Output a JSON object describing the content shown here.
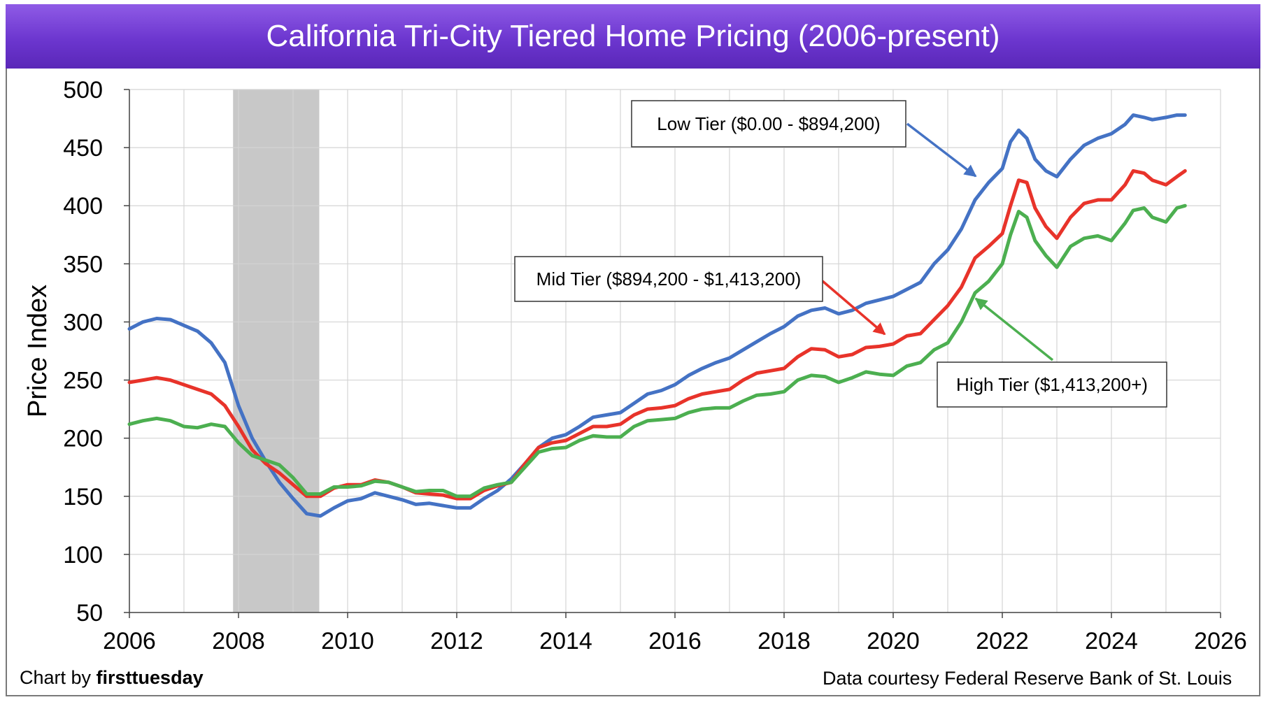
{
  "title": "California Tri-City Tiered Home Pricing (2006-present)",
  "credit_left_prefix": "Chart by ",
  "credit_left_brand": "firsttuesday",
  "credit_right": "Data courtesy Federal Reserve Bank of St. Louis",
  "chart_data": {
    "type": "line",
    "ylabel": "Price Index",
    "xlabel": "",
    "xlim": [
      2006,
      2026
    ],
    "ylim": [
      50,
      500
    ],
    "x_ticks": [
      2006,
      2008,
      2010,
      2012,
      2014,
      2016,
      2018,
      2020,
      2022,
      2024,
      2026
    ],
    "y_ticks": [
      50,
      100,
      150,
      200,
      250,
      300,
      350,
      400,
      450,
      500
    ],
    "grid": true,
    "shaded_region": {
      "x_start": 2007.9,
      "x_end": 2009.48,
      "color": "#c8c8c8"
    },
    "series": [
      {
        "name": "Low Tier ($0.00 - $894,200)",
        "color": "#4472c4",
        "points": [
          [
            2006,
            294
          ],
          [
            2006.25,
            300
          ],
          [
            2006.5,
            303
          ],
          [
            2006.75,
            302
          ],
          [
            2007,
            297
          ],
          [
            2007.25,
            292
          ],
          [
            2007.5,
            282
          ],
          [
            2007.75,
            265
          ],
          [
            2008,
            228
          ],
          [
            2008.25,
            200
          ],
          [
            2008.5,
            180
          ],
          [
            2008.75,
            162
          ],
          [
            2009,
            148
          ],
          [
            2009.25,
            135
          ],
          [
            2009.5,
            133
          ],
          [
            2009.75,
            140
          ],
          [
            2010,
            146
          ],
          [
            2010.25,
            148
          ],
          [
            2010.5,
            153
          ],
          [
            2010.75,
            150
          ],
          [
            2011,
            147
          ],
          [
            2011.25,
            143
          ],
          [
            2011.5,
            144
          ],
          [
            2011.75,
            142
          ],
          [
            2012,
            140
          ],
          [
            2012.25,
            140
          ],
          [
            2012.5,
            148
          ],
          [
            2012.75,
            155
          ],
          [
            2013,
            165
          ],
          [
            2013.25,
            178
          ],
          [
            2013.5,
            192
          ],
          [
            2013.75,
            200
          ],
          [
            2014,
            203
          ],
          [
            2014.25,
            210
          ],
          [
            2014.5,
            218
          ],
          [
            2014.75,
            220
          ],
          [
            2015,
            222
          ],
          [
            2015.25,
            230
          ],
          [
            2015.5,
            238
          ],
          [
            2015.75,
            241
          ],
          [
            2016,
            246
          ],
          [
            2016.25,
            254
          ],
          [
            2016.5,
            260
          ],
          [
            2016.75,
            265
          ],
          [
            2017,
            269
          ],
          [
            2017.25,
            276
          ],
          [
            2017.5,
            283
          ],
          [
            2017.75,
            290
          ],
          [
            2018,
            296
          ],
          [
            2018.25,
            305
          ],
          [
            2018.5,
            310
          ],
          [
            2018.75,
            312
          ],
          [
            2019,
            307
          ],
          [
            2019.25,
            310
          ],
          [
            2019.5,
            316
          ],
          [
            2019.75,
            319
          ],
          [
            2020,
            322
          ],
          [
            2020.25,
            328
          ],
          [
            2020.5,
            334
          ],
          [
            2020.75,
            350
          ],
          [
            2021,
            362
          ],
          [
            2021.25,
            380
          ],
          [
            2021.5,
            405
          ],
          [
            2021.75,
            420
          ],
          [
            2022,
            432
          ],
          [
            2022.15,
            455
          ],
          [
            2022.3,
            465
          ],
          [
            2022.45,
            458
          ],
          [
            2022.6,
            440
          ],
          [
            2022.8,
            430
          ],
          [
            2023,
            425
          ],
          [
            2023.25,
            440
          ],
          [
            2023.5,
            452
          ],
          [
            2023.75,
            458
          ],
          [
            2024,
            462
          ],
          [
            2024.25,
            470
          ],
          [
            2024.4,
            478
          ],
          [
            2024.6,
            476
          ],
          [
            2024.75,
            474
          ],
          [
            2025,
            476
          ],
          [
            2025.2,
            478
          ],
          [
            2025.35,
            478
          ]
        ]
      },
      {
        "name": "Mid Tier ($894,200 - $1,413,200)",
        "color": "#e8332a",
        "points": [
          [
            2006,
            248
          ],
          [
            2006.25,
            250
          ],
          [
            2006.5,
            252
          ],
          [
            2006.75,
            250
          ],
          [
            2007,
            246
          ],
          [
            2007.25,
            242
          ],
          [
            2007.5,
            238
          ],
          [
            2007.75,
            228
          ],
          [
            2008,
            210
          ],
          [
            2008.25,
            190
          ],
          [
            2008.5,
            178
          ],
          [
            2008.75,
            170
          ],
          [
            2009,
            160
          ],
          [
            2009.25,
            150
          ],
          [
            2009.5,
            150
          ],
          [
            2009.75,
            157
          ],
          [
            2010,
            160
          ],
          [
            2010.25,
            160
          ],
          [
            2010.5,
            164
          ],
          [
            2010.75,
            162
          ],
          [
            2011,
            158
          ],
          [
            2011.25,
            153
          ],
          [
            2011.5,
            152
          ],
          [
            2011.75,
            151
          ],
          [
            2012,
            148
          ],
          [
            2012.25,
            148
          ],
          [
            2012.5,
            155
          ],
          [
            2012.75,
            159
          ],
          [
            2013,
            162
          ],
          [
            2013.25,
            178
          ],
          [
            2013.5,
            192
          ],
          [
            2013.75,
            196
          ],
          [
            2014,
            198
          ],
          [
            2014.25,
            204
          ],
          [
            2014.5,
            210
          ],
          [
            2014.75,
            210
          ],
          [
            2015,
            212
          ],
          [
            2015.25,
            220
          ],
          [
            2015.5,
            225
          ],
          [
            2015.75,
            226
          ],
          [
            2016,
            228
          ],
          [
            2016.25,
            234
          ],
          [
            2016.5,
            238
          ],
          [
            2016.75,
            240
          ],
          [
            2017,
            242
          ],
          [
            2017.25,
            250
          ],
          [
            2017.5,
            256
          ],
          [
            2017.75,
            258
          ],
          [
            2018,
            260
          ],
          [
            2018.25,
            270
          ],
          [
            2018.5,
            277
          ],
          [
            2018.75,
            276
          ],
          [
            2019,
            270
          ],
          [
            2019.25,
            272
          ],
          [
            2019.5,
            278
          ],
          [
            2019.75,
            279
          ],
          [
            2020,
            281
          ],
          [
            2020.25,
            288
          ],
          [
            2020.5,
            290
          ],
          [
            2020.75,
            302
          ],
          [
            2021,
            314
          ],
          [
            2021.25,
            330
          ],
          [
            2021.5,
            355
          ],
          [
            2021.75,
            365
          ],
          [
            2022,
            376
          ],
          [
            2022.15,
            400
          ],
          [
            2022.3,
            422
          ],
          [
            2022.45,
            420
          ],
          [
            2022.6,
            398
          ],
          [
            2022.8,
            382
          ],
          [
            2023,
            372
          ],
          [
            2023.25,
            390
          ],
          [
            2023.5,
            402
          ],
          [
            2023.75,
            405
          ],
          [
            2024,
            405
          ],
          [
            2024.25,
            418
          ],
          [
            2024.4,
            430
          ],
          [
            2024.6,
            428
          ],
          [
            2024.75,
            422
          ],
          [
            2025,
            418
          ],
          [
            2025.2,
            425
          ],
          [
            2025.35,
            430
          ]
        ]
      },
      {
        "name": "High Tier ($1,413,200+)",
        "color": "#4caf50",
        "points": [
          [
            2006,
            212
          ],
          [
            2006.25,
            215
          ],
          [
            2006.5,
            217
          ],
          [
            2006.75,
            215
          ],
          [
            2007,
            210
          ],
          [
            2007.25,
            209
          ],
          [
            2007.5,
            212
          ],
          [
            2007.75,
            210
          ],
          [
            2008,
            196
          ],
          [
            2008.25,
            185
          ],
          [
            2008.5,
            181
          ],
          [
            2008.75,
            177
          ],
          [
            2009,
            166
          ],
          [
            2009.25,
            152
          ],
          [
            2009.5,
            152
          ],
          [
            2009.75,
            158
          ],
          [
            2010,
            158
          ],
          [
            2010.25,
            159
          ],
          [
            2010.5,
            163
          ],
          [
            2010.75,
            162
          ],
          [
            2011,
            158
          ],
          [
            2011.25,
            154
          ],
          [
            2011.5,
            155
          ],
          [
            2011.75,
            155
          ],
          [
            2012,
            150
          ],
          [
            2012.25,
            150
          ],
          [
            2012.5,
            157
          ],
          [
            2012.75,
            160
          ],
          [
            2013,
            162
          ],
          [
            2013.25,
            175
          ],
          [
            2013.5,
            188
          ],
          [
            2013.75,
            191
          ],
          [
            2014,
            192
          ],
          [
            2014.25,
            198
          ],
          [
            2014.5,
            202
          ],
          [
            2014.75,
            201
          ],
          [
            2015,
            201
          ],
          [
            2015.25,
            210
          ],
          [
            2015.5,
            215
          ],
          [
            2015.75,
            216
          ],
          [
            2016,
            217
          ],
          [
            2016.25,
            222
          ],
          [
            2016.5,
            225
          ],
          [
            2016.75,
            226
          ],
          [
            2017,
            226
          ],
          [
            2017.25,
            232
          ],
          [
            2017.5,
            237
          ],
          [
            2017.75,
            238
          ],
          [
            2018,
            240
          ],
          [
            2018.25,
            250
          ],
          [
            2018.5,
            254
          ],
          [
            2018.75,
            253
          ],
          [
            2019,
            248
          ],
          [
            2019.25,
            252
          ],
          [
            2019.5,
            257
          ],
          [
            2019.75,
            255
          ],
          [
            2020,
            254
          ],
          [
            2020.25,
            262
          ],
          [
            2020.5,
            265
          ],
          [
            2020.75,
            276
          ],
          [
            2021,
            282
          ],
          [
            2021.25,
            300
          ],
          [
            2021.5,
            325
          ],
          [
            2021.75,
            335
          ],
          [
            2022,
            350
          ],
          [
            2022.15,
            375
          ],
          [
            2022.3,
            395
          ],
          [
            2022.45,
            390
          ],
          [
            2022.6,
            370
          ],
          [
            2022.8,
            357
          ],
          [
            2023,
            347
          ],
          [
            2023.25,
            365
          ],
          [
            2023.5,
            372
          ],
          [
            2023.75,
            374
          ],
          [
            2024,
            370
          ],
          [
            2024.25,
            385
          ],
          [
            2024.4,
            396
          ],
          [
            2024.6,
            398
          ],
          [
            2024.75,
            390
          ],
          [
            2025,
            386
          ],
          [
            2025.2,
            398
          ],
          [
            2025.35,
            400
          ]
        ]
      }
    ],
    "annotations": [
      {
        "text": "Low Tier ($0.00 - $894,200)",
        "series": 0
      },
      {
        "text": "Mid Tier ($894,200 - $1,413,200)",
        "series": 1
      },
      {
        "text": "High Tier ($1,413,200+)",
        "series": 2
      }
    ]
  }
}
